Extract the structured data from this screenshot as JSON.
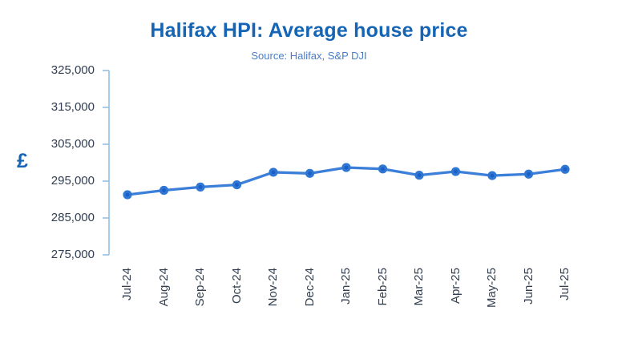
{
  "chart_data": {
    "type": "line",
    "title": "Halifax HPI: Average house price",
    "subtitle": "Source: Halifax, S&P DJI",
    "y_axis_unit_label": "£",
    "categories": [
      "Jul-24",
      "Aug-24",
      "Sep-24",
      "Oct-24",
      "Nov-24",
      "Dec-24",
      "Jan-25",
      "Feb-25",
      "Mar-25",
      "Apr-25",
      "May-25",
      "Jun-25",
      "Jul-25"
    ],
    "series": [
      {
        "name": "Average house price",
        "values": [
          291300,
          292500,
          293400,
          294000,
          297400,
          297100,
          298700,
          298300,
          296600,
          297600,
          296500,
          296900,
          298200
        ]
      }
    ],
    "ylim": [
      275000,
      325000
    ],
    "y_tick_step": 10000,
    "y_tick_labels_top_to_bottom": [
      "325,000",
      "315,000",
      "305,000",
      "295,000",
      "285,000",
      "275,000"
    ],
    "xlabel": "",
    "ylabel": "£",
    "grid": "off",
    "legend": "none",
    "colors": {
      "title": "#1565b4",
      "subtitle": "#4a7cc7",
      "tick_label": "#333f50",
      "axis_line": "#96bfe3",
      "line": "#3b7fd9",
      "marker_fill": "#2f77d3",
      "marker_core": "#1a5ec6",
      "pound": "#1565b4",
      "background": "#ffffff"
    }
  }
}
